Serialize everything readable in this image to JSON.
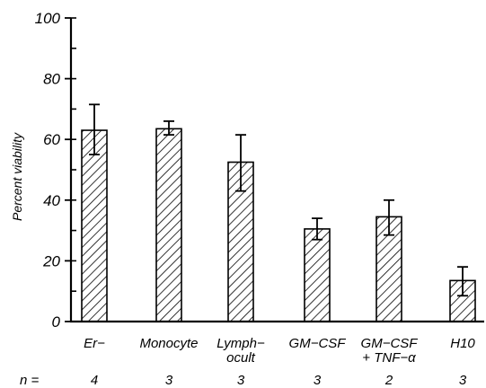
{
  "chart_data": {
    "type": "bar",
    "categories": [
      [
        "Er−"
      ],
      [
        "Monocyte"
      ],
      [
        "Lymph−",
        "ocult"
      ],
      [
        "GM−CSF"
      ],
      [
        "GM−CSF",
        "+ TNF−α"
      ],
      [
        "H10"
      ]
    ],
    "values": [
      63,
      63.5,
      52.5,
      30.5,
      34.5,
      13.5
    ],
    "error_low": [
      55,
      61.5,
      43,
      27,
      28.5,
      8.5
    ],
    "error_high": [
      71.5,
      66,
      61.5,
      34,
      40,
      18
    ],
    "ylabel": "Percent viability",
    "ylim": [
      0,
      100
    ],
    "yticks": [
      "0",
      "20",
      "40",
      "60",
      "80",
      "100"
    ],
    "yminor_step": 10,
    "n_label": "n =",
    "n_values": [
      "4",
      "3",
      "3",
      "3",
      "2",
      "3"
    ],
    "bar_fill": "hatched",
    "grid": false,
    "legend": "none"
  }
}
